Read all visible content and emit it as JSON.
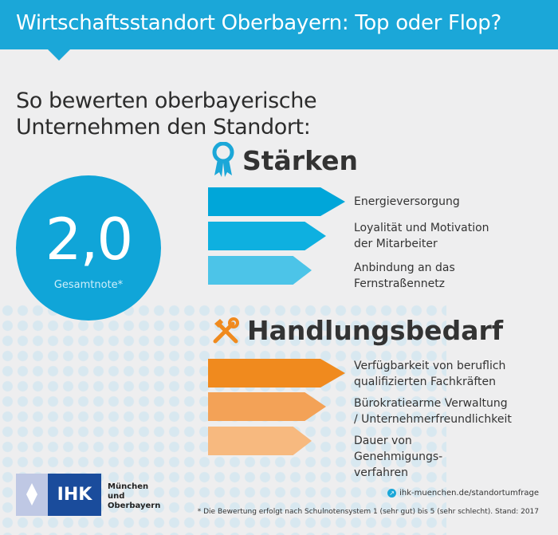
{
  "header": {
    "title": "Wirtschaftsstandort Oberbayern: Top oder Flop?"
  },
  "subtitle": "So bewerten oberbayerische Unternehmen den Standort:",
  "score": {
    "value": "2,0",
    "label": "Gesamtnote*"
  },
  "strengths": {
    "title": "Stärken",
    "icon": "award-ribbon-icon",
    "color": "#00a6d9",
    "items": [
      "Energieversorgung",
      "Loyalität und Motivation der Mitarbeiter",
      "Anbindung an das Fernstraßennetz"
    ]
  },
  "needs": {
    "title": "Handlungsbedarf",
    "icon": "tools-icon",
    "color": "#f08a1e",
    "items": [
      "Verfügbarkeit von beruflich qualifizierten Fachkräften",
      "Bürokratiearme Verwaltung / Unternehmerfreundlichkeit",
      "Dauer von Genehmigungs-verfahren"
    ]
  },
  "logo": {
    "abbr": "IHK",
    "name": "München und Oberbayern"
  },
  "url": "ihk-muenchen.de/standortumfrage",
  "footnote": "* Die Bewertung erfolgt nach Schulnotensystem 1 (sehr gut) bis 5 (sehr schlecht). Stand: 2017"
}
